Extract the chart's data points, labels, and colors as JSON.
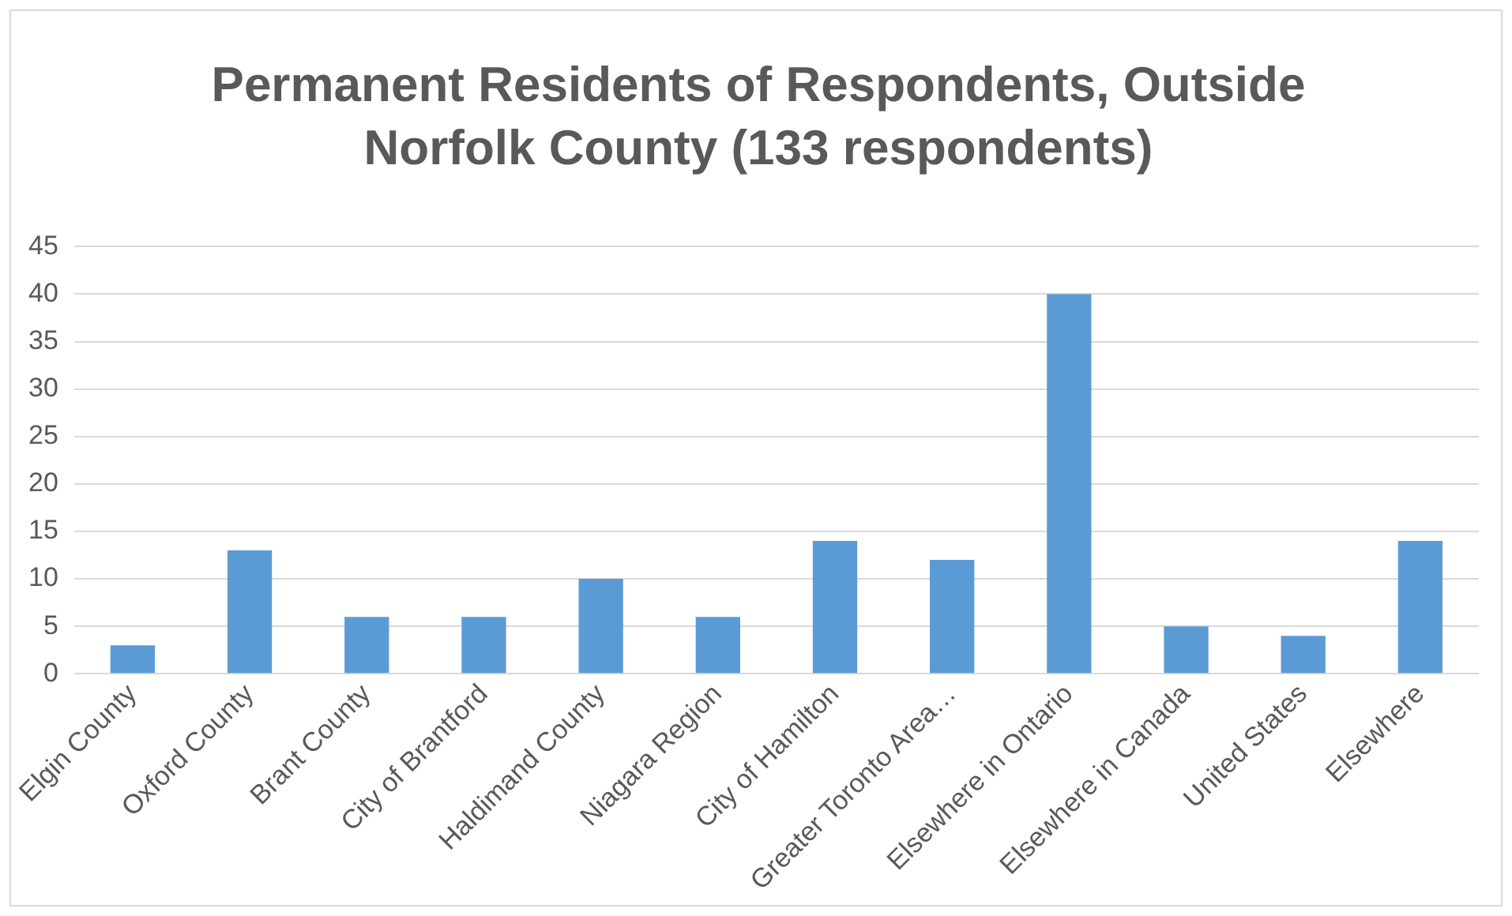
{
  "chart_data": {
    "type": "bar",
    "title": "Permanent Residents of Respondents, Outside Norfolk County (133 respondents)",
    "categories": [
      "Elgin County",
      "Oxford County",
      "Brant County",
      "City of Brantford",
      "Haldimand County",
      "Niagara Region",
      "City of Hamilton",
      "Greater Toronto Area…",
      "Elsewhere in Ontario",
      "Elsewhere in Canada",
      "United States",
      "Elsewhere"
    ],
    "values": [
      3,
      13,
      6,
      6,
      10,
      6,
      14,
      12,
      40,
      5,
      4,
      14
    ],
    "color": "#5b9bd5",
    "ylim": [
      0,
      45
    ],
    "yticks": [
      0,
      5,
      10,
      15,
      20,
      25,
      30,
      35,
      40,
      45
    ],
    "grid": "y"
  }
}
